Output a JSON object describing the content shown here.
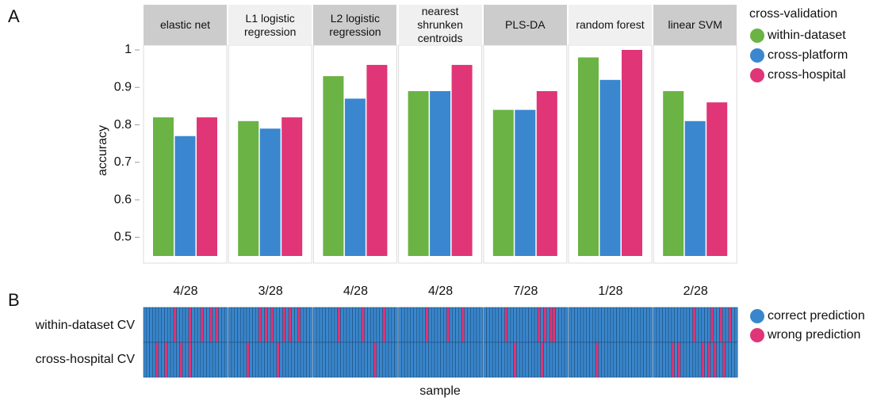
{
  "chart_data": [
    {
      "type": "bar",
      "panel_label": "A",
      "categories": [
        "elastic net",
        "L1 logistic regression",
        "L2 logistic regression",
        "nearest shrunken centroids",
        "PLS-DA",
        "random forest",
        "linear SVM"
      ],
      "series": [
        {
          "name": "within-dataset",
          "color": "#6ab344",
          "values": [
            0.82,
            0.81,
            0.93,
            0.89,
            0.84,
            0.98,
            0.89
          ]
        },
        {
          "name": "cross-platform",
          "color": "#3a87d0",
          "values": [
            0.77,
            0.79,
            0.87,
            0.89,
            0.84,
            0.92,
            0.81
          ]
        },
        {
          "name": "cross-hospital",
          "color": "#e03577",
          "values": [
            0.82,
            0.82,
            0.96,
            0.96,
            0.89,
            1.0,
            0.86
          ]
        }
      ],
      "ylabel": "accuracy",
      "ylim": [
        0.45,
        1
      ],
      "yticks": [
        0.5,
        0.6,
        0.7,
        0.8,
        0.9,
        1
      ],
      "legend_title": "cross-validation"
    },
    {
      "type": "heatmap",
      "panel_label": "B",
      "columns": [
        "4/28",
        "3/28",
        "4/28",
        "4/28",
        "7/28",
        "1/28",
        "2/28"
      ],
      "rows": [
        "within-dataset CV",
        "cross-hospital CV"
      ],
      "xlabel": "sample",
      "legend": [
        {
          "name": "correct prediction",
          "color": "#3a86cc"
        },
        {
          "name": "wrong prediction",
          "color": "#e03577"
        }
      ],
      "values": [
        [
          [
            0,
            0,
            0,
            0,
            0,
            0,
            0,
            0,
            0,
            0,
            1,
            0,
            0,
            0,
            0,
            1,
            0,
            0,
            0,
            1,
            0,
            0,
            1,
            0,
            1,
            0,
            0,
            0
          ],
          [
            0,
            0,
            0,
            0,
            1,
            0,
            0,
            1,
            0,
            0,
            0,
            0,
            1,
            0,
            0,
            1,
            0,
            0,
            0,
            0,
            0,
            0,
            0,
            0,
            0,
            0,
            0,
            0
          ]
        ],
        [
          [
            0,
            0,
            0,
            0,
            0,
            0,
            0,
            0,
            0,
            0,
            1,
            0,
            1,
            0,
            1,
            0,
            0,
            0,
            1,
            0,
            1,
            0,
            0,
            1,
            0,
            0,
            0,
            0
          ],
          [
            0,
            0,
            0,
            0,
            0,
            0,
            1,
            0,
            0,
            0,
            0,
            0,
            0,
            0,
            0,
            0,
            1,
            0,
            0,
            0,
            0,
            0,
            0,
            0,
            0,
            0,
            0,
            0
          ]
        ],
        [
          [
            0,
            0,
            0,
            0,
            0,
            0,
            0,
            0,
            1,
            0,
            0,
            0,
            0,
            0,
            0,
            0,
            1,
            0,
            0,
            0,
            0,
            0,
            0,
            1,
            0,
            0,
            0,
            0
          ],
          [
            0,
            0,
            0,
            0,
            0,
            0,
            0,
            0,
            0,
            0,
            0,
            0,
            0,
            0,
            0,
            0,
            0,
            0,
            0,
            0,
            1,
            0,
            0,
            0,
            0,
            0,
            0,
            0
          ]
        ],
        [
          [
            0,
            0,
            0,
            0,
            0,
            0,
            0,
            0,
            0,
            1,
            0,
            0,
            0,
            0,
            0,
            0,
            1,
            0,
            0,
            0,
            0,
            1,
            0,
            0,
            0,
            0,
            0,
            0
          ],
          [
            0,
            0,
            0,
            0,
            0,
            0,
            0,
            0,
            0,
            0,
            0,
            0,
            0,
            0,
            0,
            0,
            0,
            0,
            0,
            0,
            0,
            0,
            0,
            0,
            0,
            0,
            0,
            0
          ]
        ],
        [
          [
            0,
            0,
            0,
            0,
            0,
            0,
            0,
            1,
            0,
            0,
            0,
            0,
            0,
            0,
            0,
            0,
            0,
            0,
            1,
            0,
            1,
            0,
            1,
            1,
            0,
            0,
            0,
            0
          ],
          [
            0,
            0,
            0,
            0,
            0,
            0,
            0,
            0,
            0,
            0,
            1,
            0,
            0,
            0,
            0,
            0,
            0,
            0,
            0,
            1,
            0,
            0,
            0,
            0,
            0,
            0,
            0,
            0
          ]
        ],
        [
          [
            0,
            0,
            0,
            0,
            0,
            0,
            0,
            0,
            0,
            0,
            0,
            0,
            0,
            0,
            0,
            0,
            0,
            0,
            0,
            0,
            0,
            0,
            0,
            0,
            0,
            0,
            0,
            0
          ],
          [
            0,
            0,
            0,
            0,
            0,
            0,
            0,
            0,
            0,
            1,
            0,
            0,
            0,
            0,
            0,
            0,
            0,
            0,
            0,
            0,
            0,
            0,
            0,
            0,
            0,
            0,
            0,
            0
          ]
        ],
        [
          [
            0,
            0,
            0,
            0,
            0,
            0,
            0,
            0,
            0,
            0,
            0,
            0,
            0,
            1,
            0,
            0,
            0,
            0,
            0,
            1,
            0,
            0,
            1,
            0,
            0,
            1,
            0,
            0
          ],
          [
            0,
            0,
            0,
            0,
            0,
            0,
            1,
            0,
            1,
            0,
            0,
            0,
            0,
            0,
            0,
            0,
            1,
            0,
            1,
            0,
            1,
            0,
            0,
            1,
            0,
            0,
            0,
            0
          ]
        ]
      ]
    }
  ]
}
